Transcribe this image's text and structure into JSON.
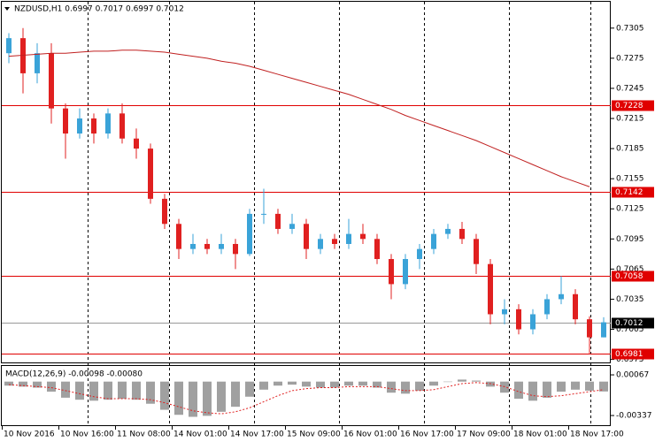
{
  "chart_data": {
    "type": "candlestick",
    "title": "NZDUSD,H1  0.6997 0.7017 0.6997 0.7012",
    "open": [
      0.728,
      0.7295,
      0.726,
      0.728,
      0.7225,
      0.72,
      0.7215,
      0.72,
      0.722,
      0.7195,
      0.7185,
      0.7135,
      0.711,
      0.7085,
      0.709,
      0.7085,
      0.709,
      0.708,
      0.712,
      0.712,
      0.7105,
      0.711,
      0.7085,
      0.7095,
      0.709,
      0.71,
      0.7095,
      0.7075,
      0.705,
      0.7075,
      0.7085,
      0.71,
      0.7105,
      0.7095,
      0.707,
      0.702,
      0.7025,
      0.7005,
      0.702,
      0.7035,
      0.704,
      0.7015,
      0.6997
    ],
    "high": [
      0.73,
      0.7305,
      0.729,
      0.729,
      0.723,
      0.7225,
      0.722,
      0.7225,
      0.723,
      0.7205,
      0.719,
      0.714,
      0.7115,
      0.71,
      0.7095,
      0.71,
      0.7095,
      0.7125,
      0.7145,
      0.7125,
      0.712,
      0.7115,
      0.71,
      0.71,
      0.7115,
      0.711,
      0.71,
      0.708,
      0.708,
      0.709,
      0.7105,
      0.711,
      0.7112,
      0.71,
      0.7075,
      0.7035,
      0.703,
      0.7025,
      0.704,
      0.7058,
      0.7045,
      0.7018,
      0.7017
    ],
    "low": [
      0.727,
      0.724,
      0.725,
      0.721,
      0.7175,
      0.7195,
      0.719,
      0.7195,
      0.719,
      0.7175,
      0.713,
      0.7105,
      0.7075,
      0.708,
      0.708,
      0.708,
      0.7065,
      0.7078,
      0.711,
      0.71,
      0.71,
      0.7075,
      0.708,
      0.7085,
      0.7085,
      0.709,
      0.707,
      0.7035,
      0.7045,
      0.7065,
      0.708,
      0.7095,
      0.709,
      0.706,
      0.701,
      0.701,
      0.7,
      0.7,
      0.7015,
      0.703,
      0.701,
      0.698,
      0.6997
    ],
    "close": [
      0.7295,
      0.726,
      0.728,
      0.7225,
      0.72,
      0.7215,
      0.72,
      0.722,
      0.7195,
      0.7185,
      0.7135,
      0.711,
      0.7085,
      0.709,
      0.7085,
      0.709,
      0.708,
      0.712,
      0.712,
      0.7105,
      0.711,
      0.7085,
      0.7095,
      0.709,
      0.71,
      0.7095,
      0.7075,
      0.705,
      0.7075,
      0.7085,
      0.71,
      0.7105,
      0.7095,
      0.707,
      0.702,
      0.7025,
      0.7005,
      0.702,
      0.7035,
      0.704,
      0.7015,
      0.6997,
      0.7012
    ],
    "ma": [
      0.7277,
      0.7278,
      0.7279,
      0.728,
      0.728,
      0.7281,
      0.7282,
      0.7282,
      0.7283,
      0.7283,
      0.7282,
      0.7281,
      0.7279,
      0.7277,
      0.7275,
      0.7272,
      0.727,
      0.7267,
      0.7263,
      0.7259,
      0.7255,
      0.7251,
      0.7247,
      0.7243,
      0.7239,
      0.7234,
      0.7229,
      0.7224,
      0.7218,
      0.7213,
      0.7208,
      0.7203,
      0.7198,
      0.7193,
      0.7187,
      0.7181,
      0.7175,
      0.7169,
      0.7163,
      0.7157,
      0.7152,
      0.7147,
      null
    ],
    "up_color": "#3aa3d8",
    "down_color": "#e02020",
    "ma_color": "#c02020",
    "ylim": [
      0.6972,
      0.7333
    ],
    "yticks": [
      0.7305,
      0.7275,
      0.7245,
      0.7215,
      0.7185,
      0.7155,
      0.7125,
      0.7095,
      0.7065,
      0.7035,
      0.7005,
      0.6975
    ],
    "levels": [
      0.7228,
      0.7142,
      0.7058,
      0.6981
    ],
    "current_price": 0.7012,
    "x_labels": [
      "10 Nov 2016",
      "10 Nov 16:00",
      "11 Nov 08:00",
      "14 Nov 01:00",
      "14 Nov 17:00",
      "15 Nov 09:00",
      "16 Nov 01:00",
      "16 Nov 17:00",
      "17 Nov 09:00",
      "18 Nov 01:00",
      "18 Nov 17:00"
    ],
    "macd": {
      "title": "MACD(12,26,9) -0.00098 -0.00080",
      "values": [
        -0.0004,
        -0.0005,
        -0.0006,
        -0.001,
        -0.0016,
        -0.0018,
        -0.0019,
        -0.0018,
        -0.0017,
        -0.0018,
        -0.0022,
        -0.0028,
        -0.0033,
        -0.0035,
        -0.0034,
        -0.003,
        -0.0025,
        -0.0015,
        -0.0008,
        -0.0004,
        -0.0003,
        -0.0005,
        -0.0006,
        -0.0006,
        -0.0004,
        -0.0004,
        -0.0006,
        -0.0011,
        -0.0012,
        -0.0009,
        -0.0004,
        0,
        0.0002,
        0.0001,
        -0.0005,
        -0.0011,
        -0.0017,
        -0.0019,
        -0.0016,
        -0.001,
        -0.0008,
        -0.0009,
        -0.00098
      ],
      "signal": [
        -0.0003,
        -0.0004,
        -0.0005,
        -0.0006,
        -0.0009,
        -0.0012,
        -0.0015,
        -0.0017,
        -0.0017,
        -0.0017,
        -0.0018,
        -0.0021,
        -0.0025,
        -0.0029,
        -0.0031,
        -0.0032,
        -0.003,
        -0.0026,
        -0.002,
        -0.0014,
        -0.0009,
        -0.0007,
        -0.0006,
        -0.0006,
        -0.0005,
        -0.0005,
        -0.0005,
        -0.0007,
        -0.0009,
        -0.0009,
        -0.0008,
        -0.0005,
        -0.0002,
        -0.0001,
        -0.0002,
        -0.0005,
        -0.001,
        -0.0014,
        -0.0015,
        -0.0014,
        -0.0012,
        -0.001,
        -0.0008
      ],
      "bar_color": "#a0a0a0",
      "signal_color": "#e02020",
      "ylim": [
        -0.00442,
        0.00164
      ],
      "yticks": [
        0.00067,
        -0.00337
      ]
    }
  }
}
